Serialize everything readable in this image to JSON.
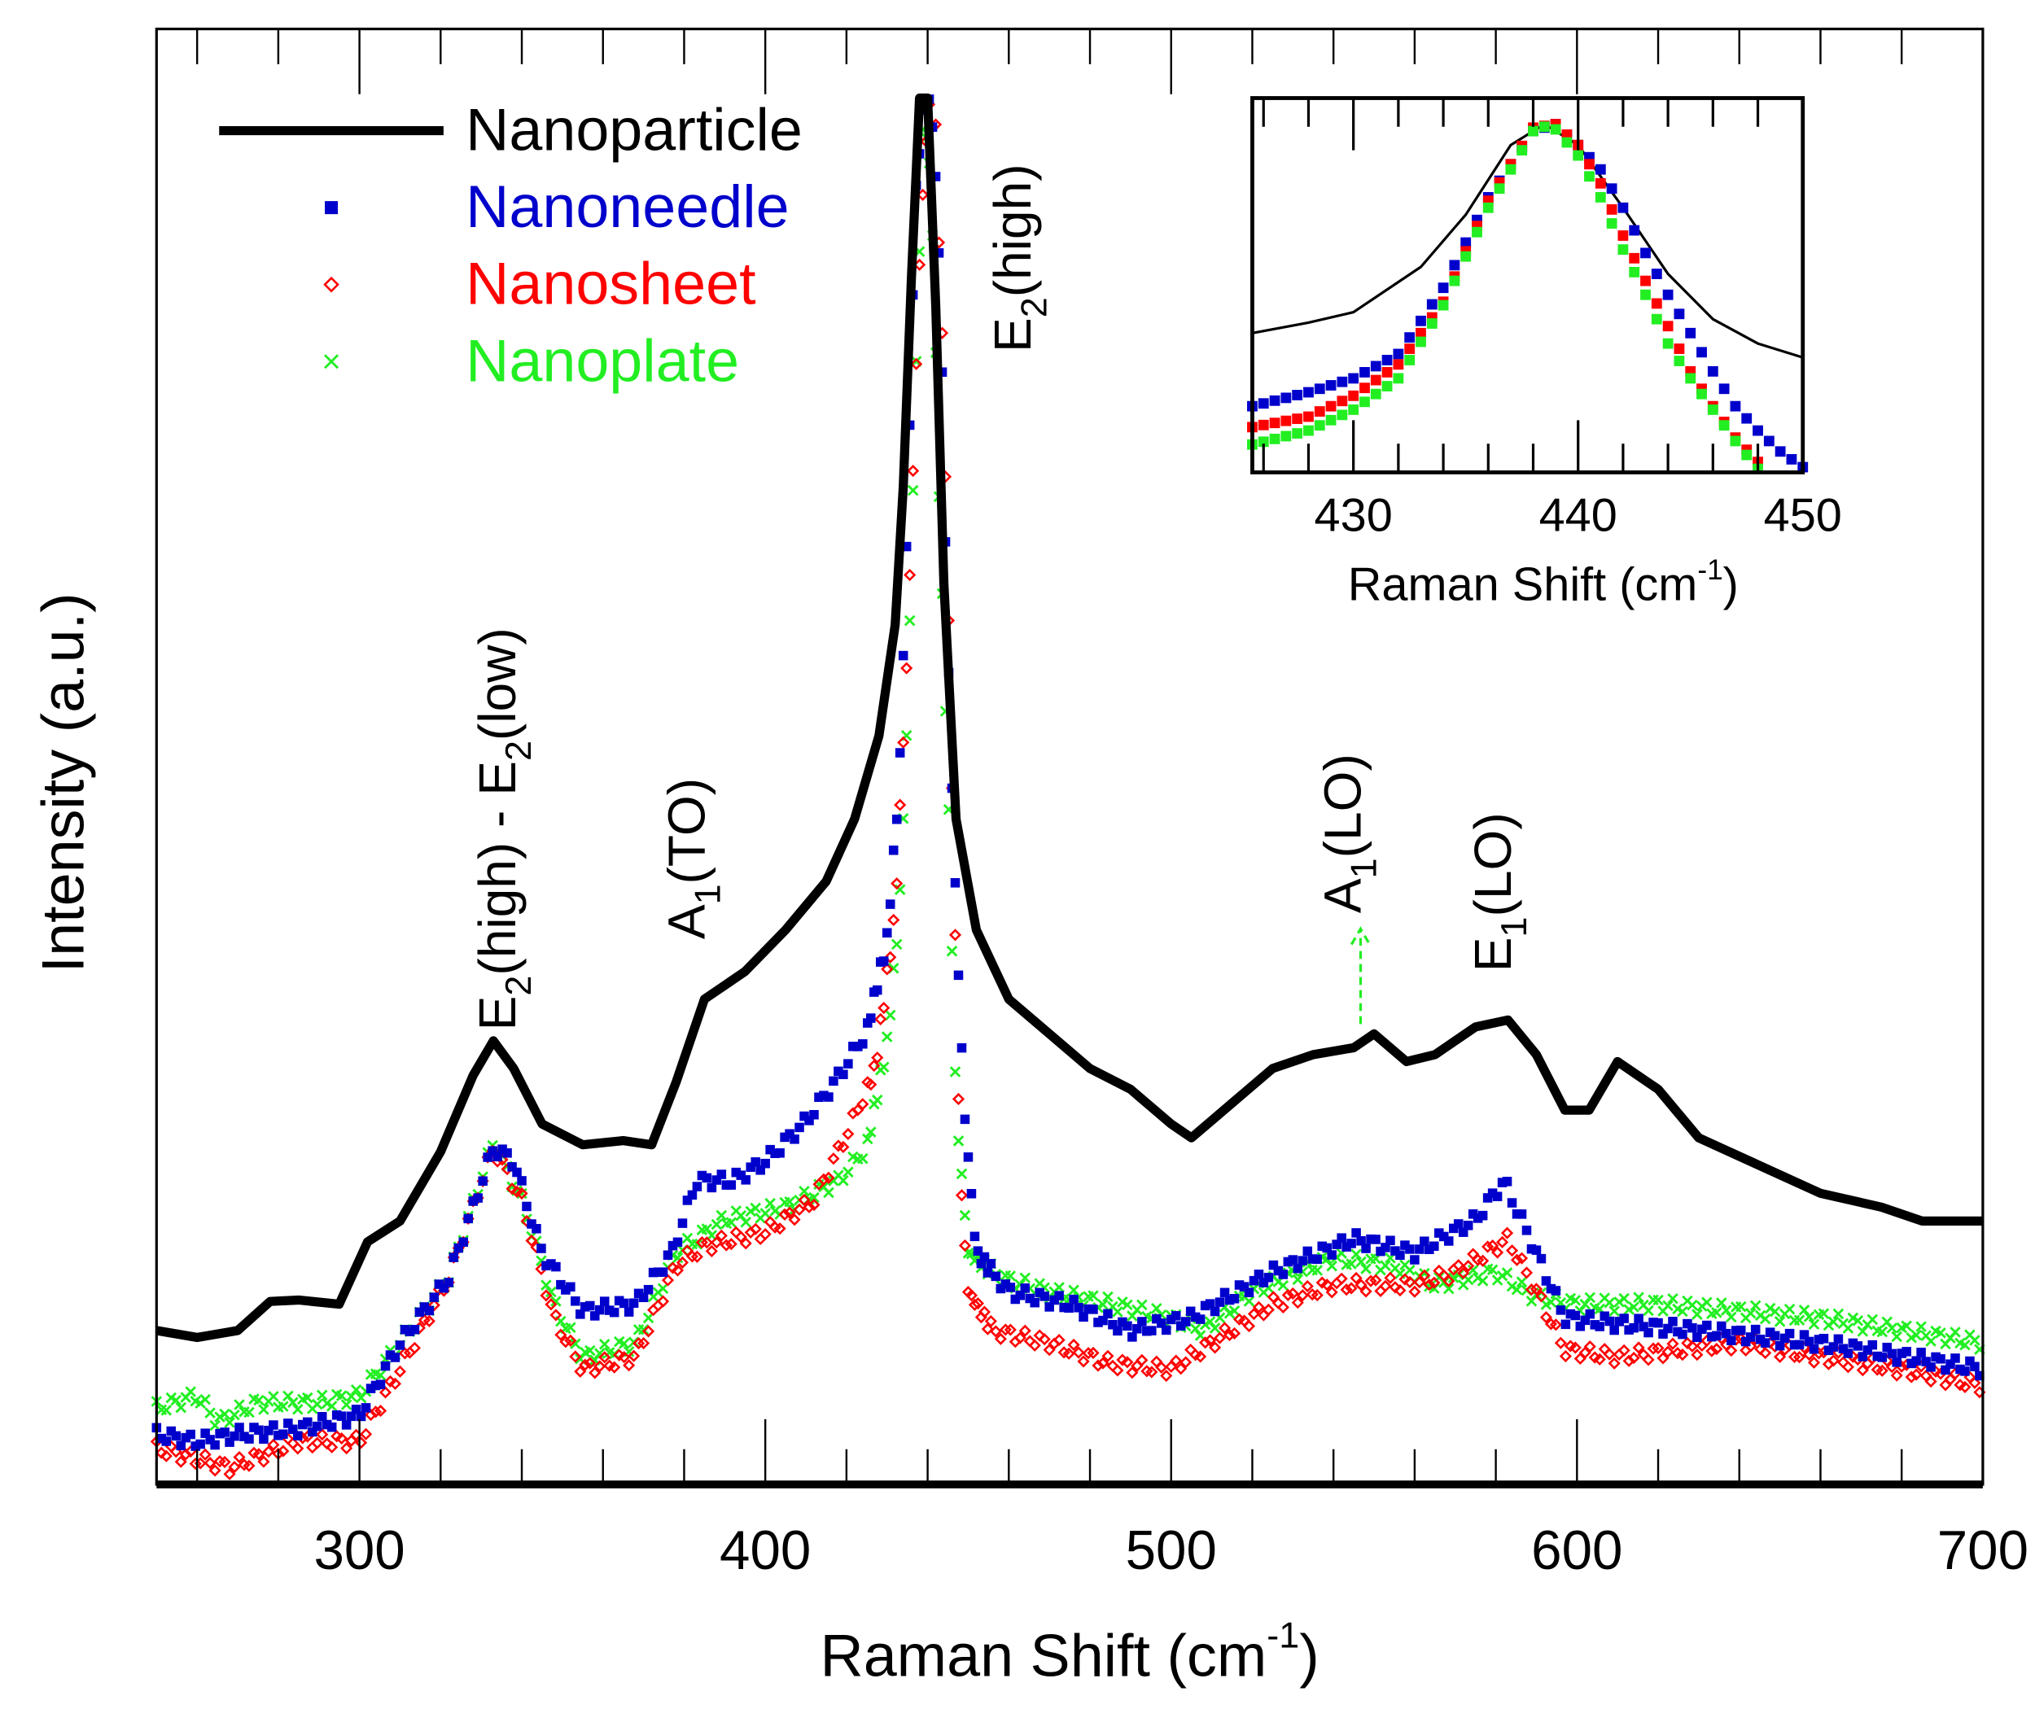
{
  "chart_data": {
    "type": "line",
    "xlabel": "Raman Shift (cm-1)",
    "xlabel_main": "Raman Shift (cm",
    "xlabel_sup": "-1",
    "xlabel_close": ")",
    "ylabel": "Intensity (a.u.)",
    "xlim": [
      250,
      700
    ],
    "ylim": [
      0,
      100
    ],
    "xticks": [
      300,
      400,
      500,
      600,
      700
    ],
    "legend_position": "top-left",
    "colors": {
      "Nanoparticle": "#000000",
      "Nanoneedle": "#0000cc",
      "Nanosheet": "#ff0000",
      "Nanoplate": "#22ee22"
    },
    "series": [
      {
        "name": "Nanoparticle",
        "marker": "line",
        "x": [
          250,
          260,
          270,
          278,
          285,
          295,
          302,
          310,
          320,
          328,
          333,
          338,
          345,
          355,
          365,
          372,
          378,
          385,
          395,
          405,
          415,
          422,
          428,
          432,
          434,
          436,
          438,
          440,
          442,
          444,
          447,
          452,
          460,
          470,
          480,
          490,
          500,
          505,
          515,
          525,
          535,
          545,
          550,
          558,
          565,
          575,
          583,
          590,
          597,
          603,
          610,
          620,
          630,
          645,
          660,
          675,
          685,
          700
        ],
        "y": [
          11.1,
          10.6,
          11.1,
          13.2,
          13.3,
          13,
          17.5,
          19,
          24,
          29.5,
          32,
          30,
          26,
          24.5,
          24.8,
          24.5,
          29,
          35,
          37,
          40,
          43.5,
          48,
          54,
          62,
          72,
          87,
          100,
          100,
          85,
          65,
          48,
          40,
          35,
          32.5,
          30,
          28.5,
          26,
          25,
          27.5,
          30,
          31,
          31.5,
          32.5,
          30.5,
          31,
          33,
          33.5,
          31,
          27,
          27,
          30.5,
          28.5,
          25,
          23,
          21,
          20,
          19,
          19
        ]
      },
      {
        "name": "Nanoneedle",
        "marker": "square",
        "x": [
          250,
          260,
          270,
          285,
          300,
          310,
          322,
          333,
          338,
          345,
          355,
          368,
          377,
          383,
          392,
          400,
          410,
          418,
          425,
          430,
          433,
          435,
          437,
          439,
          441,
          443,
          445,
          447,
          449,
          452,
          460,
          475,
          490,
          505,
          525,
          545,
          560,
          575,
          582,
          590,
          597,
          610,
          630,
          660,
          700
        ],
        "y": [
          3.6,
          3.1,
          3.6,
          4.0,
          5.0,
          10.2,
          14.9,
          24.3,
          23.3,
          16.7,
          12.5,
          13.0,
          16.7,
          21.9,
          21.9,
          23.3,
          26.2,
          29.4,
          32.7,
          39.3,
          50.6,
          69.4,
          92.9,
          99.5,
          99.5,
          88.2,
          60,
          41.2,
          27.1,
          16.7,
          13.9,
          13.0,
          11.1,
          12.0,
          15.3,
          17.7,
          16.7,
          19.1,
          21.9,
          16.7,
          12.0,
          11.6,
          11.1,
          10.2,
          8.3
        ]
      },
      {
        "name": "Nanosheet",
        "marker": "diamond",
        "x": [
          250,
          268,
          285,
          300,
          310,
          322,
          333,
          340,
          348,
          355,
          368,
          378,
          385,
          400,
          412,
          420,
          427,
          432,
          435,
          438,
          440,
          442,
          444,
          446,
          448,
          450,
          456,
          470,
          485,
          500,
          510,
          525,
          540,
          560,
          570,
          583,
          590,
          597,
          610,
          640,
          660,
          680,
          700
        ],
        "y": [
          2.6,
          1.2,
          3.1,
          3.1,
          8.3,
          14.9,
          24.3,
          20.5,
          12.0,
          8.3,
          9.2,
          15.8,
          17.2,
          18.2,
          20.5,
          25.2,
          29.9,
          41.2,
          60,
          88.2,
          99.5,
          97.6,
          78.8,
          50.6,
          22.4,
          13.9,
          11.1,
          10.2,
          8.7,
          8.3,
          10.2,
          13.0,
          14.4,
          14.4,
          15.3,
          17.7,
          13.9,
          9.7,
          9.2,
          10.2,
          9.2,
          8.3,
          7.1
        ]
      },
      {
        "name": "Nanoplate",
        "marker": "x",
        "x": [
          250,
          260,
          265,
          275,
          290,
          300,
          310,
          322,
          333,
          340,
          348,
          355,
          368,
          378,
          390,
          405,
          418,
          425,
          430,
          433,
          435,
          437,
          439,
          441,
          443,
          445,
          447,
          450,
          458,
          470,
          485,
          500,
          508,
          520,
          540,
          555,
          565,
          580,
          590,
          600,
          620,
          640,
          660,
          680,
          700
        ],
        "y": [
          5.5,
          6.4,
          4.5,
          5.9,
          5.9,
          6.4,
          10.2,
          14.9,
          24.7,
          20.5,
          13.0,
          9.2,
          10.2,
          16.7,
          19.1,
          20.0,
          21.9,
          24.3,
          31.8,
          41.2,
          55.3,
          78.8,
          99.5,
          92.9,
          69.4,
          50.6,
          27.1,
          16.7,
          14.9,
          13.9,
          13.0,
          12.0,
          11.1,
          13.9,
          16.3,
          15.8,
          14.4,
          15.3,
          13.5,
          13.0,
          13.0,
          12.5,
          12.0,
          11.1,
          10.2
        ]
      }
    ],
    "annotations": [
      {
        "text": "E2(high) - E2(low)",
        "parts": [
          "E",
          "2",
          "(high) - E",
          "2",
          "(low)"
        ],
        "x": 333
      },
      {
        "text": "A1(TO)",
        "parts": [
          "A",
          "1",
          "(TO)"
        ],
        "x": 380
      },
      {
        "text": "E2(high)",
        "parts": [
          "E",
          "2",
          "(high)"
        ],
        "x": 437
      },
      {
        "text": "A1(LO)",
        "parts": [
          "A",
          "1",
          "(LO)"
        ],
        "x": 550
      },
      {
        "text": "E1(LO)",
        "parts": [
          "E",
          "1",
          "(LO)"
        ],
        "x": 583
      }
    ],
    "inset": {
      "type": "scatter",
      "xlabel": "Raman Shift (cm-1)",
      "xlabel_main": "Raman Shift (cm",
      "xlabel_sup": "-1",
      "xlabel_close": ")",
      "xlim": [
        425.5,
        450
      ],
      "ylim": [
        0,
        100
      ],
      "xticks": [
        430,
        440,
        450
      ],
      "series": [
        {
          "name": "Nanoparticle",
          "x": [
            425.5,
            428,
            430,
            433,
            435,
            437,
            438.5,
            440,
            442,
            444,
            446,
            448,
            450
          ],
          "y": [
            40,
            43,
            46,
            59,
            74,
            94,
            100,
            94,
            76,
            57,
            44,
            37,
            33
          ]
        },
        {
          "name": "Nanoneedle",
          "x": [
            425.5,
            428,
            430,
            432,
            434,
            436,
            438,
            439,
            440,
            441,
            442,
            443,
            444,
            445,
            446,
            447,
            448,
            449,
            450
          ],
          "y": [
            19,
            23,
            27,
            34,
            53,
            79,
            98,
            100,
            94,
            87,
            76,
            63,
            51,
            40,
            29,
            19,
            12,
            6,
            1.5
          ]
        },
        {
          "name": "Nanosheet",
          "x": [
            425.5,
            428,
            430,
            432,
            434,
            436,
            438,
            439,
            440,
            441,
            442,
            443,
            444,
            445,
            446,
            447,
            448
          ],
          "y": [
            13,
            16,
            22,
            31,
            49,
            78,
            99,
            100,
            94,
            83,
            68,
            55,
            42,
            29,
            19,
            10,
            3
          ]
        },
        {
          "name": "Nanoplate",
          "x": [
            425.5,
            428,
            430,
            432,
            434,
            436,
            437,
            438,
            438.8,
            440,
            441,
            442,
            443,
            444,
            445,
            446,
            447,
            448
          ],
          "y": [
            8,
            12,
            18,
            27,
            48,
            76,
            87,
            98,
            100,
            91,
            79,
            64,
            51,
            37,
            27,
            18,
            9,
            1
          ]
        }
      ]
    }
  }
}
